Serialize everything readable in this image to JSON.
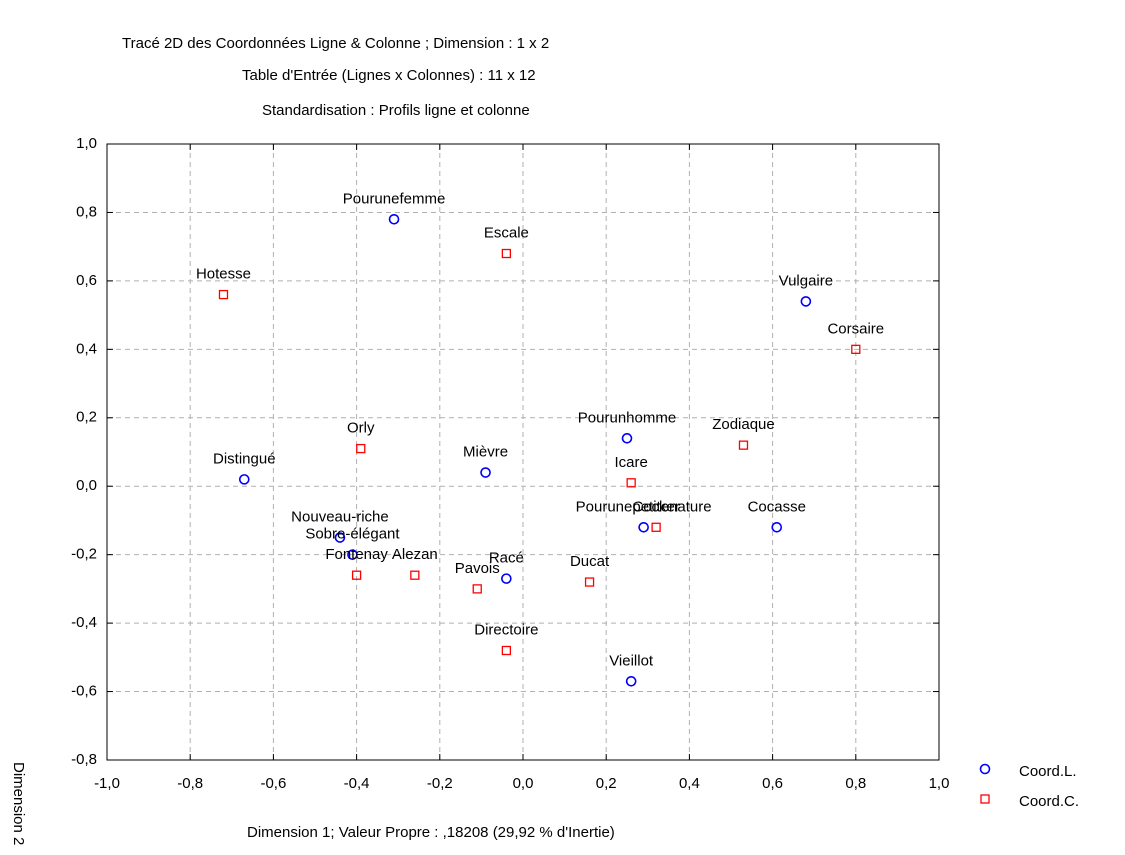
{
  "chart_data": {
    "type": "scatter",
    "title": "Tracé 2D des Coordonnées Ligne & Colonne ; Dimension :  1 x  2",
    "subtitle": "Table d'Entrée (Lignes x Colonnes) : 11 x 12",
    "subtitle2": "Standardisation : Profils ligne et colonne",
    "x_label": "Dimension 1; Valeur Propre : ,18208 (29,92  % d'Inertie)",
    "y_label": "Dimension 2",
    "xlim": [
      -1.0,
      1.0
    ],
    "ylim": [
      -0.8,
      1.0
    ],
    "xticks": [
      {
        "value": -1.0,
        "label": "-1,0"
      },
      {
        "value": -0.8,
        "label": "-0,8"
      },
      {
        "value": -0.6,
        "label": "-0,6"
      },
      {
        "value": -0.4,
        "label": "-0,4"
      },
      {
        "value": -0.2,
        "label": "-0,2"
      },
      {
        "value": 0,
        "label": "0,0"
      },
      {
        "value": 0.2,
        "label": "0,2"
      },
      {
        "value": 0.4,
        "label": "0,4"
      },
      {
        "value": 0.6,
        "label": "0,6"
      },
      {
        "value": 0.8,
        "label": "0,8"
      },
      {
        "value": 1.0,
        "label": "1,0"
      }
    ],
    "yticks": [
      {
        "value": -0.8,
        "label": "-0,8"
      },
      {
        "value": -0.6,
        "label": "-0,6"
      },
      {
        "value": -0.4,
        "label": "-0,4"
      },
      {
        "value": -0.2,
        "label": "-0,2"
      },
      {
        "value": 0,
        "label": "0,0"
      },
      {
        "value": 0.2,
        "label": "0,2"
      },
      {
        "value": 0.4,
        "label": "0,4"
      },
      {
        "value": 0.6,
        "label": "0,6"
      },
      {
        "value": 0.8,
        "label": "0,8"
      },
      {
        "value": 1.0,
        "label": "1,0"
      }
    ],
    "grid": true,
    "legend": "right",
    "series": [
      {
        "name": "Coord.L.",
        "color": "#0000ff",
        "marker": "circle",
        "labels": [
          "Pourunefemme",
          "Vulgaire",
          "Pourunhomme",
          "Distingué",
          "Mièvre",
          "Nouveau-riche",
          "Sobre-élégant",
          "Racé",
          "Pourunepetitenature",
          "Cocasse",
          "Vieillot"
        ],
        "x": [
          -0.31,
          0.68,
          0.25,
          -0.67,
          -0.09,
          -0.44,
          -0.41,
          -0.04,
          0.29,
          0.61,
          0.26
        ],
        "y": [
          0.78,
          0.54,
          0.14,
          0.02,
          0.04,
          -0.15,
          -0.2,
          -0.27,
          -0.12,
          -0.12,
          -0.57
        ]
      },
      {
        "name": "Coord.C.",
        "color": "#ff0000",
        "marker": "square",
        "labels": [
          "Escale",
          "Hotesse",
          "Corsaire",
          "Orly",
          "Zodiaque",
          "Icare",
          "Cocker",
          "Fontenay",
          "Alezan",
          "Pavois",
          "Ducat",
          "Directoire"
        ],
        "x": [
          -0.04,
          -0.72,
          0.8,
          -0.39,
          0.53,
          0.26,
          0.32,
          -0.4,
          -0.26,
          -0.11,
          0.16,
          -0.04
        ],
        "y": [
          0.68,
          0.56,
          0.4,
          0.11,
          0.12,
          0.01,
          -0.12,
          -0.26,
          -0.26,
          -0.3,
          -0.28,
          -0.48
        ]
      }
    ]
  }
}
